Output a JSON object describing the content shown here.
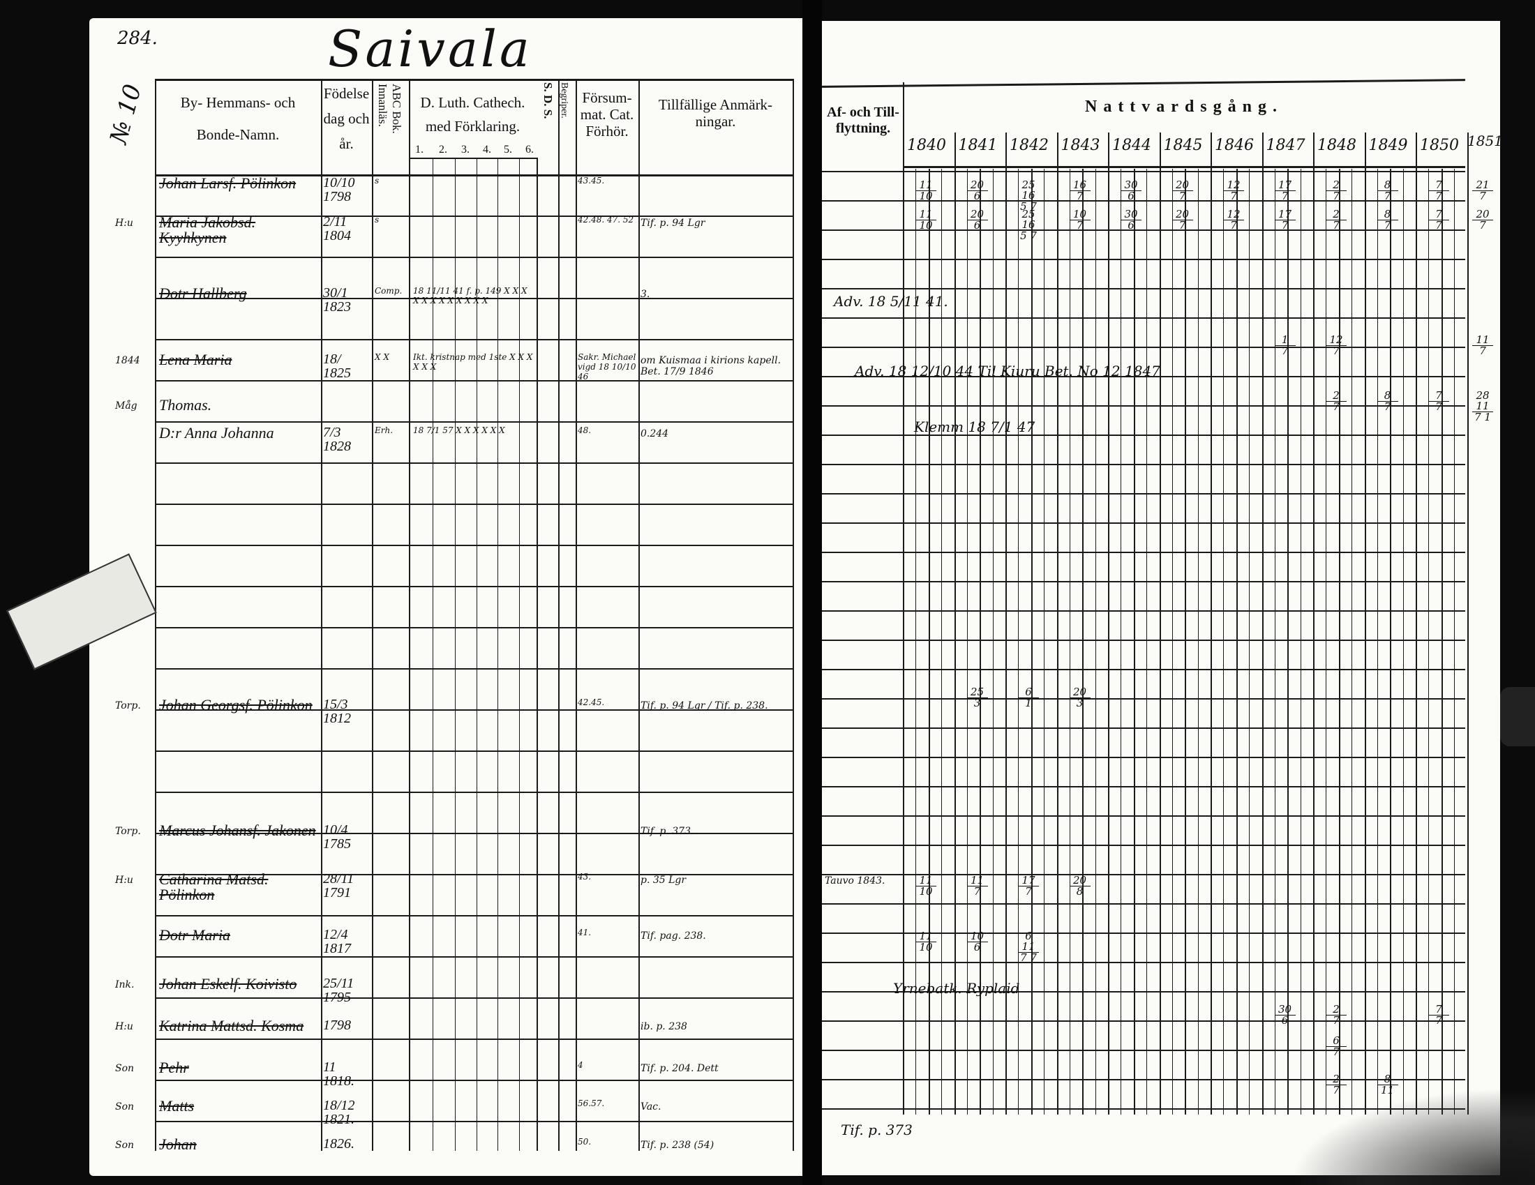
{
  "left_page": {
    "page_number": "284.",
    "village_title": "Saivala",
    "household_number": "№ 10",
    "headers": {
      "name_line1": "By- Hemmans- och",
      "name_line2": "Bonde-Namn.",
      "birth_line1": "Födelse",
      "birth_line2": "dag och",
      "birth_line3": "år.",
      "abc": "ABC Bok. Innanläs.",
      "cathech_line1": "D. Luth. Cathech.",
      "cathech_line2": "med Förklaring.",
      "cathech_subcols": [
        "1.",
        "2.",
        "3.",
        "4.",
        "5.",
        "6."
      ],
      "sds": "S. D. S.",
      "begriper": "Begriper.",
      "forsummat_line1": "Försum-",
      "forsummat_line2": "mat. Cat.",
      "forsummat_line3": "Förhör.",
      "notes_line1": "Tillfällige Anmärk-",
      "notes_line2": "ningar."
    },
    "entries": [
      {
        "prefix": "",
        "name": "Johan Larsf. Pölinkon",
        "birth": "10/10 1798",
        "abc": "s",
        "cathech": "",
        "forsummat": "43.45.",
        "notes": ""
      },
      {
        "prefix": "H:u",
        "name": "Maria Jakobsd. Kyyhkynen",
        "birth": "2/11 1804",
        "abc": "s",
        "cathech": "",
        "forsummat": "42.48. 47. 52",
        "notes": "Tif. p. 94 Lgr"
      },
      {
        "prefix": "",
        "name": "Dotr Hallberg",
        "birth": "30/1 1823",
        "abc": "Comp.",
        "cathech": "18 11/11 41 f. p. 149  X X X X X X X X X X X X",
        "forsummat": "",
        "notes": "3."
      },
      {
        "prefix": "1844",
        "name": "Lena Maria",
        "birth": "18/ 1825",
        "abc": "X X",
        "cathech": "Ikt. kristnap med 1ste  X X X X X X",
        "forsummat": "Sakr. Michael vigd 18 10/10 46",
        "notes": "om Kuismaa i kirions kapell. Bet. 17/9 1846"
      },
      {
        "prefix": "Måg",
        "name": "Thomas.",
        "birth": "",
        "abc": "",
        "cathech": "",
        "forsummat": "",
        "notes": ""
      },
      {
        "prefix": "",
        "name": "D:r Anna Johanna",
        "birth": "7/3 1828",
        "abc": "Erh.",
        "cathech": "18 7/1 57 X X X X X X",
        "forsummat": "48.",
        "notes": "0.244"
      },
      {
        "prefix": "Torp.",
        "name": "Johan Georgsf. Pölinkon",
        "birth": "15/3 1812",
        "abc": "",
        "cathech": "",
        "forsummat": "42.45.",
        "notes": "Tif. p. 94 Lgr / Tif. p. 238."
      },
      {
        "prefix": "Torp.",
        "name": "Marcus Johansf. Jakonen",
        "birth": "10/4 1785",
        "abc": "",
        "cathech": "",
        "forsummat": "",
        "notes": "Tif. p. 373."
      },
      {
        "prefix": "H:u",
        "name": "Catharina Matsd. Pölinkon",
        "birth": "28/11 1791",
        "abc": "",
        "cathech": "",
        "forsummat": "43.",
        "notes": "p. 35 Lgr"
      },
      {
        "prefix": "",
        "name": "Dotr Maria",
        "birth": "12/4 1817",
        "abc": "",
        "cathech": "",
        "forsummat": "41.",
        "notes": "Tif. pag. 238."
      },
      {
        "prefix": "Ink.",
        "name": "Johan Eskelf. Koivisto",
        "birth": "25/11 1795",
        "abc": "",
        "cathech": "",
        "forsummat": "",
        "notes": ""
      },
      {
        "prefix": "H:u",
        "name": "Katrina Mattsd. Kosma",
        "birth": "1798",
        "abc": "",
        "cathech": "",
        "forsummat": "",
        "notes": "ib. p. 238"
      },
      {
        "prefix": "Son",
        "name": "Pehr",
        "birth": "11 1818.",
        "abc": "",
        "cathech": "",
        "forsummat": "4",
        "notes": "Tif. p. 204. Dett"
      },
      {
        "prefix": "Son",
        "name": "Matts",
        "birth": "18/12 1821.",
        "abc": "",
        "cathech": "",
        "forsummat": "56.57.",
        "notes": "Vac."
      },
      {
        "prefix": "Son",
        "name": "Johan",
        "birth": "1826.",
        "abc": "",
        "cathech": "",
        "forsummat": "50.",
        "notes": "Tif. p. 238 (54)"
      }
    ]
  },
  "right_page": {
    "headers": {
      "moving_line1": "Af- och Till-",
      "moving_line2": "flyttning.",
      "communion": "Nattvardsgång."
    },
    "years": [
      "1840",
      "1841",
      "1842",
      "1843",
      "1844",
      "1845",
      "1846",
      "1847",
      "1848",
      "1849",
      "1850"
    ],
    "extra_year": "1851.",
    "moving_notes": [
      {
        "row": "Dotr Hallberg",
        "text": "Adv. 18 5/11 41."
      },
      {
        "row": "Lena Maria",
        "text": "Adv. 18 12/10 44 Til Kiuru Bet. No 12 1847"
      },
      {
        "row": "D:r Anna Johanna",
        "text": "Klemm 18 7/1 47"
      },
      {
        "row": "Marcus Johansf. Jakonen",
        "text": "Tauvo 1843."
      },
      {
        "row": "Dotr Maria",
        "text": "Yrnebatk.  Ryplaid"
      },
      {
        "row": "footer",
        "text": "Tif. p. 373"
      }
    ],
    "communion_marks": [
      {
        "row": 0,
        "year": 0,
        "n": "11",
        "d": "10"
      },
      {
        "row": 0,
        "year": 1,
        "n": "20",
        "d": "6"
      },
      {
        "row": 0,
        "year": 2,
        "n": "25 16",
        "d": "5 7"
      },
      {
        "row": 0,
        "year": 3,
        "n": "16",
        "d": "7"
      },
      {
        "row": 0,
        "year": 4,
        "n": "30",
        "d": "6"
      },
      {
        "row": 0,
        "year": 5,
        "n": "20",
        "d": "7"
      },
      {
        "row": 0,
        "year": 6,
        "n": "12",
        "d": "7"
      },
      {
        "row": 0,
        "year": 7,
        "n": "17",
        "d": "7"
      },
      {
        "row": 0,
        "year": 8,
        "n": "2",
        "d": "7"
      },
      {
        "row": 0,
        "year": 9,
        "n": "8",
        "d": "7"
      },
      {
        "row": 0,
        "year": 10,
        "n": "7",
        "d": "7"
      },
      {
        "row": 0,
        "year": 11,
        "n": "21",
        "d": "7"
      },
      {
        "row": 1,
        "year": 0,
        "n": "11",
        "d": "10"
      },
      {
        "row": 1,
        "year": 1,
        "n": "20",
        "d": "6"
      },
      {
        "row": 1,
        "year": 2,
        "n": "25 16",
        "d": "5 7"
      },
      {
        "row": 1,
        "year": 3,
        "n": "10",
        "d": "7"
      },
      {
        "row": 1,
        "year": 4,
        "n": "30",
        "d": "6"
      },
      {
        "row": 1,
        "year": 5,
        "n": "20",
        "d": "7"
      },
      {
        "row": 1,
        "year": 6,
        "n": "12",
        "d": "7"
      },
      {
        "row": 1,
        "year": 7,
        "n": "17",
        "d": "7"
      },
      {
        "row": 1,
        "year": 8,
        "n": "2",
        "d": "7"
      },
      {
        "row": 1,
        "year": 9,
        "n": "8",
        "d": "7"
      },
      {
        "row": 1,
        "year": 10,
        "n": "7",
        "d": "7"
      },
      {
        "row": 1,
        "year": 11,
        "n": "20",
        "d": "7"
      },
      {
        "row": 3,
        "year": 7,
        "n": "1",
        "d": "7"
      },
      {
        "row": 3,
        "year": 8,
        "n": "12",
        "d": "7"
      },
      {
        "row": 3,
        "year": 11,
        "n": "11",
        "d": "7"
      },
      {
        "row": 5,
        "year": 8,
        "n": "2",
        "d": "7"
      },
      {
        "row": 5,
        "year": 9,
        "n": "8",
        "d": "7"
      },
      {
        "row": 5,
        "year": 10,
        "n": "7",
        "d": "7"
      },
      {
        "row": 5,
        "year": 11,
        "n": "28 11",
        "d": "7 1"
      },
      {
        "row": 6,
        "year": 1,
        "n": "25",
        "d": "3"
      },
      {
        "row": 6,
        "year": 2,
        "n": "6",
        "d": "1"
      },
      {
        "row": 6,
        "year": 3,
        "n": "20",
        "d": "3"
      },
      {
        "row": 7,
        "year": 0,
        "n": "11",
        "d": "10"
      },
      {
        "row": 7,
        "year": 1,
        "n": "11",
        "d": "7"
      },
      {
        "row": 7,
        "year": 2,
        "n": "17",
        "d": "7"
      },
      {
        "row": 7,
        "year": 3,
        "n": "20",
        "d": "8"
      },
      {
        "row": 9,
        "year": 0,
        "n": "11",
        "d": "10"
      },
      {
        "row": 9,
        "year": 1,
        "n": "10",
        "d": "6"
      },
      {
        "row": 9,
        "year": 2,
        "n": "6 11",
        "d": "7 7"
      },
      {
        "row": 10,
        "year": 7,
        "n": "30",
        "d": "6"
      },
      {
        "row": 10,
        "year": 8,
        "n": "2",
        "d": "7"
      },
      {
        "row": 10,
        "year": 10,
        "n": "7",
        "d": "7"
      },
      {
        "row": 11,
        "year": 8,
        "n": "6",
        "d": "7"
      },
      {
        "row": 12,
        "year": 8,
        "n": "2",
        "d": "7"
      },
      {
        "row": 12,
        "year": 9,
        "n": "8",
        "d": "11"
      }
    ]
  }
}
